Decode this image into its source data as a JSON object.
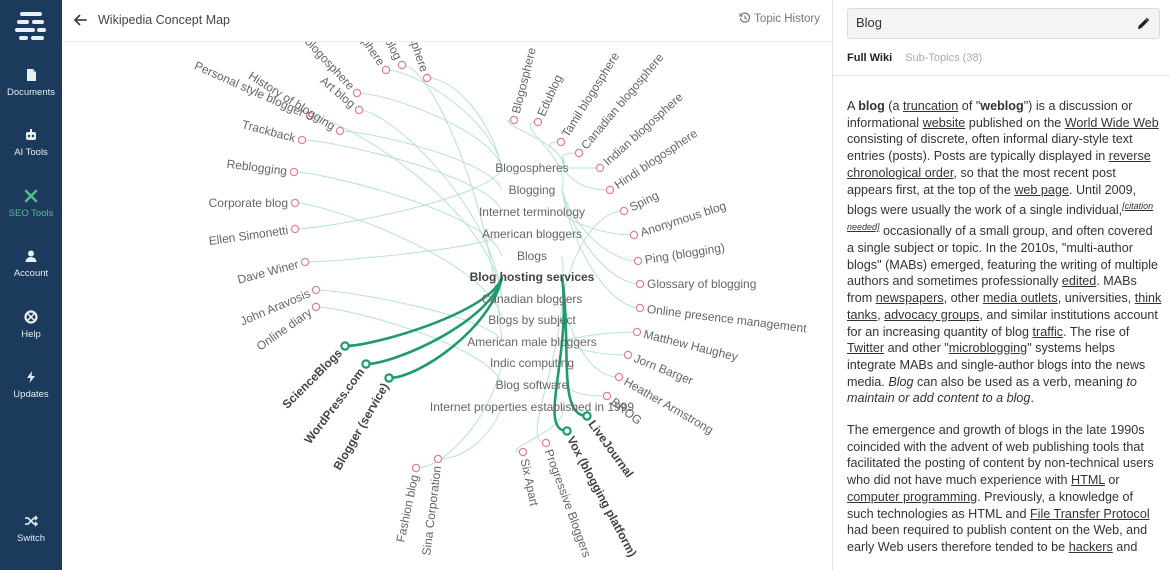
{
  "sidebar": {
    "logo_icon": "stack-logo-icon",
    "items": [
      {
        "label": "Documents",
        "icon": "document-icon"
      },
      {
        "label": "AI Tools",
        "icon": "robot-icon"
      },
      {
        "label": "SEO Tools",
        "icon": "wrench-cross-icon",
        "active": true
      },
      {
        "label": "Account",
        "icon": "user-icon"
      },
      {
        "label": "Help",
        "icon": "lifebuoy-icon"
      },
      {
        "label": "Updates",
        "icon": "bolt-icon"
      },
      {
        "label": "Switch",
        "icon": "shuffle-icon"
      }
    ]
  },
  "map": {
    "title": "Wikipedia Concept Map",
    "topic_history": "Topic History",
    "categories": [
      "Blogospheres",
      "Blogging",
      "Internet terminology",
      "American bloggers",
      "Blogs",
      "Blog hosting services",
      "Canadian bloggers",
      "Blogs by subject",
      "American male bloggers",
      "Indic computing",
      "Blog software",
      "Internet properties established in 1999"
    ],
    "selected_category": "Blog hosting services",
    "left_leaves": [
      "Blogger (service)",
      "WordPress.com",
      "ScienceBlogs",
      "Online diary",
      "John Aravosis",
      "Dave Winer",
      "Ellen Simonetti",
      "Corporate blog",
      "Reblogging",
      "Trackback",
      "Personal style blogger",
      "History of blogging",
      "Art blog",
      "J-blogosphere",
      "Mormon blogosphere",
      "Health blog",
      "Iranian political blogosphere"
    ],
    "left_bottom_leaves": [
      "Fashion blog",
      "Sina Corporation"
    ],
    "right_leaves": [
      "Blogosphere",
      "Edublog",
      "Tamil blogosphere",
      "Canadian blogosphere",
      "Indian blogosphere",
      "Hindi blogosphere",
      "Sping",
      "Anonymous blog",
      "Ping (blogging)",
      "Glossary of blogging",
      "Online presence management",
      "Matthew Haughey",
      "Jorn Barger",
      "Heather Armstrong",
      "BROG",
      "LiveJournal",
      "Vox (blogging platform)",
      "Progressive Bloggers",
      "Six Apart"
    ],
    "highlighted_leaves": [
      "Blogger (service)",
      "WordPress.com",
      "ScienceBlogs",
      "LiveJournal",
      "Vox (blogging platform)"
    ],
    "colors": {
      "link": "#b7e3cf",
      "highlight": "#1d9a72",
      "node": "#e07fa4",
      "text": "#666666"
    }
  },
  "panel": {
    "topic": "Blog",
    "tabs": [
      "Full Wiki",
      "Sub-Topics (38)"
    ],
    "active_tab": "Full Wiki",
    "article": [
      [
        {
          "t": "A "
        },
        {
          "t": "blog",
          "b": 1
        },
        {
          "t": " (a "
        },
        {
          "t": "truncation",
          "u": 1
        },
        {
          "t": " of \""
        },
        {
          "t": "weblog",
          "b": 1
        },
        {
          "t": "\") is a discussion or informational "
        },
        {
          "t": "website",
          "u": 1
        },
        {
          "t": " published on the "
        },
        {
          "t": "World Wide Web",
          "u": 1
        },
        {
          "t": " consisting of discrete, often informal diary-style text entries (posts). Posts are typically displayed in "
        },
        {
          "t": "reverse chronological order",
          "u": 1
        },
        {
          "t": ", so that the most recent post appears first, at the top of the "
        },
        {
          "t": "web page",
          "u": 1
        },
        {
          "t": ". Until 2009, blogs were usually the work of a single individual,"
        },
        {
          "t": "[citation needed]",
          "sup": 1
        },
        {
          "t": " occasionally of a small group, and often covered a single subject or topic. In the 2010s, \"multi-author blogs\" (MABs) emerged, featuring the writing of multiple authors and sometimes professionally "
        },
        {
          "t": "edited",
          "u": 1
        },
        {
          "t": ". MABs from "
        },
        {
          "t": "newspapers",
          "u": 1
        },
        {
          "t": ", other "
        },
        {
          "t": "media outlets",
          "u": 1
        },
        {
          "t": ", universities, "
        },
        {
          "t": "think tanks",
          "u": 1
        },
        {
          "t": ", "
        },
        {
          "t": "advocacy groups",
          "u": 1
        },
        {
          "t": ", and similar institutions account for an increasing quantity of blog "
        },
        {
          "t": "traffic",
          "u": 1
        },
        {
          "t": ". The rise of "
        },
        {
          "t": "Twitter",
          "u": 1
        },
        {
          "t": " and other \""
        },
        {
          "t": "microblogging",
          "u": 1
        },
        {
          "t": "\" systems helps integrate MABs and single-author blogs into the news media. "
        },
        {
          "t": "Blog",
          "i": 1
        },
        {
          "t": " can also be used as a verb, meaning "
        },
        {
          "t": "to maintain or add content to a blog",
          "i": 1
        },
        {
          "t": "."
        }
      ],
      [
        {
          "t": "The emergence and growth of blogs in the late 1990s coincided with the advent of web publishing tools that facilitated the posting of content by non-technical users who did not have much experience with "
        },
        {
          "t": "HTML",
          "u": 1
        },
        {
          "t": " or "
        },
        {
          "t": "computer programming",
          "u": 1
        },
        {
          "t": ". Previously, a knowledge of such technologies as HTML and "
        },
        {
          "t": "File Transfer Protocol",
          "u": 1
        },
        {
          "t": " had been required to publish content on the Web, and early Web users therefore tended to be "
        },
        {
          "t": "hackers",
          "u": 1
        },
        {
          "t": " and"
        }
      ]
    ]
  }
}
